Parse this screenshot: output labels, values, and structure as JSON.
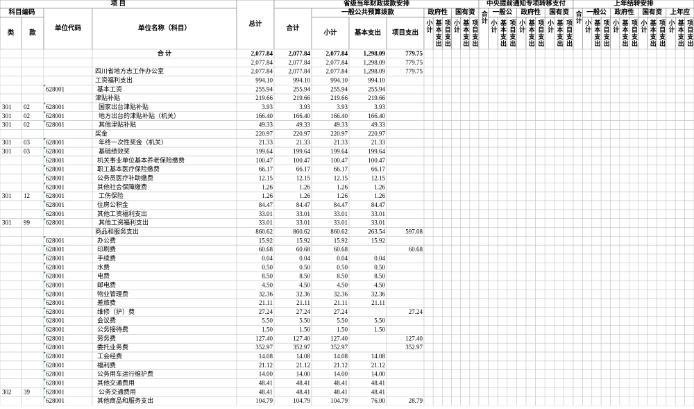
{
  "header": {
    "title": "项 目",
    "code_group": "科目编码",
    "lei": "类",
    "kuan": "款",
    "unit_code": "单位代码",
    "unit_name": "单位名称（科目）",
    "total": "总计",
    "provincial": {
      "title": "省级当年财政拨款安排",
      "heji": "合计",
      "general": {
        "title": "一般公共预算拨款",
        "cols": [
          "小计",
          "基本支出",
          "项目支出"
        ]
      },
      "sections": [
        {
          "title": "政府性",
          "cols": [
            "小计",
            "基本支出",
            "项目支出"
          ]
        },
        {
          "title": "国有资",
          "cols": [
            "小计",
            "基本支出",
            "项目支出"
          ]
        }
      ]
    },
    "central": {
      "title": "中央提前通知专项转移支付",
      "heji": "合计",
      "sections": [
        {
          "title": "一般公",
          "cols": [
            "小计",
            "基本支出",
            "项目支出"
          ]
        },
        {
          "title": "政府性",
          "cols": [
            "小计",
            "基本支出",
            "项目支出"
          ]
        },
        {
          "title": "国有资",
          "cols": [
            "小计",
            "基本支出",
            "项目支出"
          ]
        }
      ]
    },
    "last_year": {
      "title": "上年结转安排",
      "heji": "合计",
      "sections": [
        {
          "title": "一般公",
          "cols": [
            "小计",
            "基本支出",
            "项目支出"
          ]
        },
        {
          "title": "政府性",
          "cols": [
            "小计",
            "基本支出",
            "项目支出"
          ]
        },
        {
          "title": "国有资",
          "cols": [
            "小计",
            "基本支出",
            "项目支出"
          ]
        },
        {
          "title": "上年应",
          "cols": [
            "小计",
            "基本支出",
            "项目支出"
          ]
        }
      ]
    }
  },
  "rows": [
    [
      null,
      null,
      null,
      "合 计",
      "2,077.84",
      "2,077.84",
      "2,077.84",
      "1,298.09",
      "779.75"
    ],
    [
      null,
      null,
      null,
      null,
      "2,077.84",
      "2,077.84",
      "2,077.84",
      "1,298.09",
      "779.75"
    ],
    [
      null,
      null,
      null,
      "四川省地方志工作办公室",
      "2,077.84",
      "2,077.84",
      "2,077.84",
      "1,298.09",
      "779.75"
    ],
    [
      null,
      null,
      null,
      "工资福利支出",
      "994.10",
      "994.10",
      "994.10",
      "994.10",
      null
    ],
    [
      null,
      null,
      "628001",
      "基本工资",
      "255.94",
      "255.94",
      "255.94",
      "255.94",
      null
    ],
    [
      null,
      null,
      null,
      "津贴补贴",
      "219.66",
      "219.66",
      "219.66",
      "219.66",
      null
    ],
    [
      "301",
      "02",
      "628001",
      "国家出台津贴补贴",
      "3.93",
      "3.93",
      "3.93",
      "3.93",
      null
    ],
    [
      "301",
      "02",
      "628001",
      "地方出台的津贴补贴（机关）",
      "166.40",
      "166.40",
      "166.40",
      "166.40",
      null
    ],
    [
      "301",
      "02",
      "628001",
      "其他津贴补贴",
      "49.33",
      "49.33",
      "49.33",
      "49.33",
      null
    ],
    [
      null,
      null,
      null,
      "奖金",
      "220.97",
      "220.97",
      "220.97",
      "220.97",
      null
    ],
    [
      "301",
      "03",
      "628001",
      "年终一次性奖金（机关）",
      "21.33",
      "21.33",
      "21.33",
      "21.33",
      null
    ],
    [
      "301",
      "03",
      "628001",
      "基础绩效奖",
      "199.64",
      "199.64",
      "199.64",
      "199.64",
      null
    ],
    [
      null,
      null,
      "628001",
      "机关事业单位基本养老保险缴费",
      "100.47",
      "100.47",
      "100.47",
      "100.47",
      null
    ],
    [
      null,
      null,
      "628001",
      "职工基本医疗保险缴费",
      "66.17",
      "66.17",
      "66.17",
      "66.17",
      null
    ],
    [
      null,
      null,
      "628001",
      "公务员医疗补助缴费",
      "12.15",
      "12.15",
      "12.15",
      "12.15",
      null
    ],
    [
      null,
      null,
      "628001",
      "其他社会保障缴费",
      "1.26",
      "1.26",
      "1.26",
      "1.26",
      null
    ],
    [
      "301",
      "12",
      "628001",
      "工伤保险",
      "1.26",
      "1.26",
      "1.26",
      "1.26",
      null
    ],
    [
      null,
      null,
      "628001",
      "住房公积金",
      "84.47",
      "84.47",
      "84.47",
      "84.47",
      null
    ],
    [
      null,
      null,
      "628001",
      "其他工资福利支出",
      "33.01",
      "33.01",
      "33.01",
      "33.01",
      null
    ],
    [
      "301",
      "99",
      "628001",
      "其他工资福利支出",
      "33.01",
      "33.01",
      "33.01",
      "33.01",
      null
    ],
    [
      null,
      null,
      null,
      "商品和服务支出",
      "860.62",
      "860.62",
      "860.62",
      "263.54",
      "597.08"
    ],
    [
      null,
      null,
      "628001",
      "办公费",
      "15.92",
      "15.92",
      "15.92",
      "15.92",
      null
    ],
    [
      null,
      null,
      "628001",
      "印刷费",
      "60.68",
      "60.68",
      "60.68",
      null,
      "60.68"
    ],
    [
      null,
      null,
      "628001",
      "手续费",
      "0.04",
      "0.04",
      "0.04",
      "0.04",
      null
    ],
    [
      null,
      null,
      "628001",
      "水费",
      "0.50",
      "0.50",
      "0.50",
      "0.50",
      null
    ],
    [
      null,
      null,
      "628001",
      "电费",
      "8.50",
      "8.50",
      "8.50",
      "8.50",
      null
    ],
    [
      null,
      null,
      "628001",
      "邮电费",
      "4.50",
      "4.50",
      "4.50",
      "4.50",
      null
    ],
    [
      null,
      null,
      "628001",
      "物业管理费",
      "32.36",
      "32.36",
      "32.36",
      "32.36",
      null
    ],
    [
      null,
      null,
      "628001",
      "差旅费",
      "21.11",
      "21.11",
      "21.11",
      "21.11",
      null
    ],
    [
      null,
      null,
      "628001",
      "维修（护）费",
      "27.24",
      "27.24",
      "27.24",
      null,
      "27.24"
    ],
    [
      null,
      null,
      "628001",
      "会议费",
      "5.50",
      "5.50",
      "5.50",
      "5.50",
      null
    ],
    [
      null,
      null,
      "628001",
      "公务接待费",
      "1.50",
      "1.50",
      "1.50",
      "1.50",
      null
    ],
    [
      null,
      null,
      "628001",
      "劳务费",
      "127.40",
      "127.40",
      "127.40",
      null,
      "127.40"
    ],
    [
      null,
      null,
      "628001",
      "委托业务费",
      "352.97",
      "352.97",
      "352.97",
      null,
      "352.97"
    ],
    [
      null,
      null,
      "628001",
      "工会经费",
      "14.08",
      "14.08",
      "14.08",
      "14.08",
      null
    ],
    [
      null,
      null,
      "628001",
      "福利费",
      "21.12",
      "21.12",
      "21.12",
      "21.12",
      null
    ],
    [
      null,
      null,
      "628001",
      "公务用车运行维护费",
      "14.00",
      "14.00",
      "14.00",
      "14.00",
      null
    ],
    [
      null,
      null,
      "628001",
      "其他交通费用",
      "48.41",
      "48.41",
      "48.41",
      "48.41",
      null
    ],
    [
      "302",
      "39",
      "628001",
      "公务交通费用",
      "48.41",
      "48.41",
      "48.41",
      "48.41",
      null
    ],
    [
      null,
      null,
      "628001",
      "其他商品和服务支出",
      "104.79",
      "104.79",
      "104.79",
      "76.00",
      "28.79"
    ]
  ]
}
